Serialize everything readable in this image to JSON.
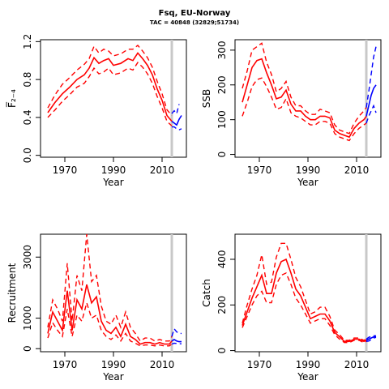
{
  "header": {
    "title": "Fsq, EU-Norway",
    "subtitle": "TAC = 40848 (32829;51734)"
  },
  "colors": {
    "historic": "#ff0000",
    "projection": "#0000ff",
    "marker": "#c8c8c8"
  },
  "marker_year": 2014,
  "chart_data": [
    {
      "id": "f",
      "type": "line",
      "xlabel": "Year",
      "ylabel": "F̅₂₋₄",
      "xlim": [
        1960,
        2020
      ],
      "ylim": [
        -0.02,
        1.22
      ],
      "xticks": [
        1970,
        1990,
        2010
      ],
      "yticks": [
        0.0,
        0.4,
        0.8,
        1.2
      ],
      "ytick_labels": [
        "0.0",
        "0.4",
        "0.8",
        "1.2"
      ],
      "series": [
        {
          "role": "historic",
          "style": "solid",
          "x": [
            1963,
            1966,
            1969,
            1972,
            1975,
            1978,
            1980,
            1982,
            1984,
            1986,
            1988,
            1990,
            1993,
            1996,
            1998,
            2000,
            2002,
            2004,
            2006,
            2008,
            2010,
            2012,
            2014
          ],
          "y": [
            0.45,
            0.56,
            0.65,
            0.72,
            0.8,
            0.85,
            0.92,
            1.03,
            0.97,
            1.0,
            1.02,
            0.95,
            0.97,
            1.02,
            1.0,
            1.08,
            1.02,
            0.95,
            0.85,
            0.7,
            0.58,
            0.42,
            0.36
          ]
        },
        {
          "role": "historic",
          "style": "dashed",
          "x": [
            1963,
            1966,
            1969,
            1972,
            1975,
            1978,
            1980,
            1982,
            1984,
            1986,
            1988,
            1990,
            1993,
            1996,
            1998,
            2000,
            2002,
            2004,
            2006,
            2008,
            2010,
            2012,
            2014
          ],
          "y": [
            0.5,
            0.64,
            0.75,
            0.82,
            0.9,
            0.96,
            1.02,
            1.15,
            1.08,
            1.12,
            1.1,
            1.05,
            1.07,
            1.12,
            1.12,
            1.16,
            1.1,
            1.03,
            0.93,
            0.78,
            0.65,
            0.48,
            0.42
          ]
        },
        {
          "role": "historic",
          "style": "dashed",
          "x": [
            1963,
            1966,
            1969,
            1972,
            1975,
            1978,
            1980,
            1982,
            1984,
            1986,
            1988,
            1990,
            1993,
            1996,
            1998,
            2000,
            2002,
            2004,
            2006,
            2008,
            2010,
            2012,
            2014
          ],
          "y": [
            0.4,
            0.48,
            0.57,
            0.64,
            0.72,
            0.76,
            0.83,
            0.92,
            0.86,
            0.88,
            0.92,
            0.85,
            0.87,
            0.92,
            0.9,
            0.98,
            0.93,
            0.86,
            0.76,
            0.62,
            0.5,
            0.36,
            0.31
          ]
        },
        {
          "role": "projection",
          "style": "solid",
          "x": [
            2014,
            2015,
            2016,
            2017,
            2018
          ],
          "y": [
            0.36,
            0.34,
            0.32,
            0.38,
            0.42
          ]
        },
        {
          "role": "projection",
          "style": "dashed",
          "x": [
            2014,
            2015,
            2016,
            2017
          ],
          "y": [
            0.44,
            0.47,
            0.44,
            0.54
          ]
        },
        {
          "role": "projection",
          "style": "dashed",
          "x": [
            2014,
            2015,
            2016,
            2017,
            2018
          ],
          "y": [
            0.3,
            0.3,
            0.28,
            0.27,
            0.28
          ]
        }
      ]
    },
    {
      "id": "ssb",
      "type": "line",
      "xlabel": "Year",
      "ylabel": "SSB",
      "xlim": [
        1960,
        2020
      ],
      "ylim": [
        -8,
        330
      ],
      "xticks": [
        1970,
        1990,
        2010
      ],
      "yticks": [
        0,
        100,
        200,
        300
      ],
      "ytick_labels": [
        "0",
        "100",
        "200",
        "300"
      ],
      "series": [
        {
          "role": "historic",
          "style": "solid",
          "x": [
            1963,
            1965,
            1967,
            1969,
            1971,
            1973,
            1975,
            1977,
            1979,
            1981,
            1983,
            1985,
            1987,
            1989,
            1991,
            1993,
            1995,
            1997,
            1999,
            2001,
            2003,
            2005,
            2007,
            2009,
            2011,
            2013,
            2014
          ],
          "y": [
            150,
            200,
            250,
            270,
            275,
            235,
            200,
            160,
            165,
            185,
            145,
            125,
            125,
            110,
            100,
            100,
            110,
            110,
            105,
            70,
            60,
            55,
            50,
            75,
            90,
            100,
            110
          ]
        },
        {
          "role": "historic",
          "style": "dashed",
          "x": [
            1963,
            1965,
            1967,
            1969,
            1971,
            1973,
            1975,
            1977,
            1979,
            1981,
            1983,
            1985,
            1987,
            1989,
            1991,
            1993,
            1995,
            1997,
            1999,
            2001,
            2003,
            2005,
            2007,
            2009,
            2011,
            2013,
            2014
          ],
          "y": [
            190,
            240,
            300,
            310,
            320,
            265,
            230,
            180,
            190,
            210,
            165,
            140,
            140,
            125,
            115,
            115,
            130,
            125,
            120,
            85,
            70,
            65,
            60,
            90,
            110,
            125,
            135
          ]
        },
        {
          "role": "historic",
          "style": "dashed",
          "x": [
            1963,
            1965,
            1967,
            1969,
            1971,
            1973,
            1975,
            1977,
            1979,
            1981,
            1983,
            1985,
            1987,
            1989,
            1991,
            1993,
            1995,
            1997,
            1999,
            2001,
            2003,
            2005,
            2007,
            2009,
            2011,
            2013,
            2014
          ],
          "y": [
            110,
            150,
            195,
            215,
            220,
            195,
            165,
            130,
            135,
            160,
            120,
            110,
            105,
            95,
            85,
            85,
            95,
            95,
            90,
            60,
            50,
            45,
            40,
            60,
            75,
            85,
            90
          ]
        },
        {
          "role": "projection",
          "style": "solid",
          "x": [
            2014,
            2015,
            2016,
            2017,
            2018
          ],
          "y": [
            110,
            140,
            170,
            190,
            200
          ]
        },
        {
          "role": "projection",
          "style": "dashed",
          "x": [
            2014,
            2015,
            2016,
            2017,
            2018
          ],
          "y": [
            135,
            180,
            230,
            280,
            310
          ]
        },
        {
          "role": "projection",
          "style": "dashed",
          "x": [
            2014,
            2015,
            2016,
            2017,
            2018
          ],
          "y": [
            90,
            110,
            125,
            140,
            120
          ]
        }
      ]
    },
    {
      "id": "recruitment",
      "type": "line",
      "xlabel": "Year",
      "ylabel": "Recruitment",
      "xlim": [
        1960,
        2020
      ],
      "ylim": [
        -100,
        3750
      ],
      "xticks": [
        1970,
        1990,
        2010
      ],
      "yticks": [
        0,
        1000,
        3000
      ],
      "ytick_labels": [
        "0",
        "1000",
        "3000"
      ],
      "series": [
        {
          "role": "historic",
          "style": "solid",
          "x": [
            1963,
            1965,
            1967,
            1969,
            1971,
            1973,
            1975,
            1977,
            1979,
            1981,
            1983,
            1985,
            1987,
            1989,
            1991,
            1993,
            1995,
            1997,
            1999,
            2001,
            2003,
            2005,
            2007,
            2009,
            2011,
            2013,
            2014
          ],
          "y": [
            500,
            1200,
            900,
            600,
            1900,
            600,
            1600,
            1300,
            2100,
            1500,
            1700,
            900,
            600,
            500,
            700,
            400,
            800,
            400,
            300,
            150,
            200,
            200,
            150,
            200,
            150,
            150,
            250
          ]
        },
        {
          "role": "historic",
          "style": "dashed",
          "x": [
            1963,
            1965,
            1967,
            1969,
            1971,
            1973,
            1975,
            1977,
            1979,
            1981,
            1983,
            1985,
            1987,
            1989,
            1991,
            1993,
            1995,
            1997,
            1999,
            2001,
            2003,
            2005,
            2007,
            2009,
            2011,
            2013,
            2014
          ],
          "y": [
            700,
            1600,
            1300,
            900,
            2800,
            900,
            2400,
            1900,
            3750,
            2200,
            2400,
            1400,
            900,
            800,
            1100,
            700,
            1200,
            700,
            500,
            250,
            350,
            350,
            250,
            300,
            250,
            250,
            400
          ]
        },
        {
          "role": "historic",
          "style": "dashed",
          "x": [
            1963,
            1965,
            1967,
            1969,
            1971,
            1973,
            1975,
            1977,
            1979,
            1981,
            1983,
            1985,
            1987,
            1989,
            1991,
            1993,
            1995,
            1997,
            1999,
            2001,
            2003,
            2005,
            2007,
            2009,
            2011,
            2013,
            2014
          ],
          "y": [
            350,
            850,
            600,
            400,
            1300,
            400,
            1100,
            900,
            1500,
            1000,
            1100,
            600,
            400,
            300,
            450,
            250,
            500,
            250,
            180,
            90,
            120,
            120,
            90,
            120,
            90,
            90,
            150
          ]
        },
        {
          "role": "projection",
          "style": "solid",
          "x": [
            2014,
            2015,
            2016,
            2017,
            2018
          ],
          "y": [
            250,
            300,
            250,
            230,
            230
          ]
        },
        {
          "role": "projection",
          "style": "dashed",
          "x": [
            2014,
            2015,
            2016,
            2017,
            2018
          ],
          "y": [
            400,
            650,
            550,
            500,
            500
          ]
        },
        {
          "role": "projection",
          "style": "dashed",
          "x": [
            2014,
            2015,
            2016,
            2017,
            2018
          ],
          "y": [
            150,
            180,
            170,
            160,
            160
          ]
        }
      ]
    },
    {
      "id": "catch",
      "type": "line",
      "xlabel": "Year",
      "ylabel": "Catch",
      "xlim": [
        1960,
        2020
      ],
      "ylim": [
        -5,
        510
      ],
      "xticks": [
        1970,
        1990,
        2010
      ],
      "yticks": [
        0,
        200,
        400
      ],
      "ytick_labels": [
        "0",
        "200",
        "400"
      ],
      "series": [
        {
          "role": "historic",
          "style": "solid",
          "x": [
            1963,
            1965,
            1967,
            1969,
            1971,
            1973,
            1975,
            1977,
            1979,
            1981,
            1983,
            1985,
            1987,
            1989,
            1991,
            1993,
            1995,
            1997,
            1999,
            2001,
            2003,
            2005,
            2007,
            2009,
            2011,
            2013,
            2014
          ],
          "y": [
            110,
            170,
            230,
            280,
            330,
            250,
            250,
            340,
            390,
            400,
            340,
            270,
            240,
            190,
            140,
            150,
            160,
            160,
            130,
            80,
            60,
            40,
            40,
            50,
            50,
            40,
            45
          ]
        },
        {
          "role": "historic",
          "style": "dashed",
          "x": [
            1963,
            1965,
            1967,
            1969,
            1971,
            1973,
            1975,
            1977,
            1979,
            1981,
            1983,
            1985,
            1987,
            1989,
            1991,
            1993,
            1995,
            1997,
            1999,
            2001,
            2003,
            2005,
            2007,
            2009,
            2011,
            2013,
            2014
          ],
          "y": [
            120,
            200,
            270,
            330,
            420,
            290,
            300,
            410,
            470,
            470,
            400,
            320,
            280,
            220,
            160,
            170,
            190,
            190,
            150,
            90,
            70,
            45,
            45,
            55,
            55,
            45,
            50
          ]
        },
        {
          "role": "historic",
          "style": "dashed",
          "x": [
            1963,
            1965,
            1967,
            1969,
            1971,
            1973,
            1975,
            1977,
            1979,
            1981,
            1983,
            1985,
            1987,
            1989,
            1991,
            1993,
            1995,
            1997,
            1999,
            2001,
            2003,
            2005,
            2007,
            2009,
            2011,
            2013,
            2014
          ],
          "y": [
            100,
            150,
            200,
            240,
            260,
            210,
            210,
            290,
            330,
            340,
            290,
            230,
            200,
            160,
            120,
            130,
            140,
            140,
            110,
            70,
            50,
            35,
            35,
            45,
            45,
            35,
            40
          ]
        },
        {
          "role": "projection",
          "style": "solid",
          "x": [
            2014,
            2015,
            2016,
            2017,
            2018
          ],
          "y": [
            45,
            50,
            55,
            60,
            62
          ]
        },
        {
          "role": "projection",
          "style": "dashed",
          "x": [
            2014,
            2015,
            2016,
            2017,
            2018
          ],
          "y": [
            50,
            58,
            62,
            65,
            65
          ]
        },
        {
          "role": "projection",
          "style": "dashed",
          "x": [
            2014,
            2015,
            2016,
            2017,
            2018
          ],
          "y": [
            40,
            42,
            48,
            55,
            58
          ]
        }
      ]
    }
  ]
}
